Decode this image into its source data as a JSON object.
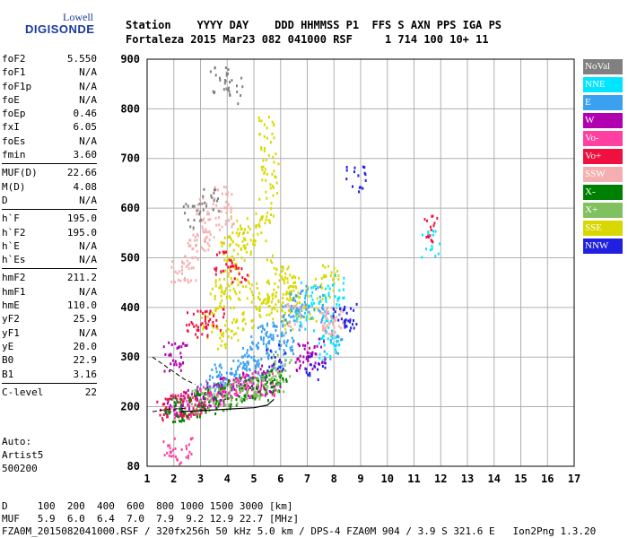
{
  "logo": {
    "line1": "Lowell",
    "line2": "DIGISONDE"
  },
  "header": {
    "labels": "Station    YYYY DAY    DDD HHMMSS P1  FFS S AXN PPS IGA PS",
    "values": "Fortaleza 2015 Mar23 082 041000 RSF     1 714 100 10+ 11"
  },
  "params": {
    "group1": [
      {
        "name": "foF2",
        "value": "5.550"
      },
      {
        "name": "foF1",
        "value": "N/A"
      },
      {
        "name": "foF1p",
        "value": "N/A"
      },
      {
        "name": "foE",
        "value": "N/A"
      },
      {
        "name": "foEp",
        "value": "0.46"
      },
      {
        "name": "fxI",
        "value": "6.05"
      },
      {
        "name": "foEs",
        "value": "N/A"
      },
      {
        "name": "fmin",
        "value": "3.60"
      }
    ],
    "group2": [
      {
        "name": "MUF(D)",
        "value": "22.66"
      },
      {
        "name": "M(D)",
        "value": "4.08"
      },
      {
        "name": "D",
        "value": "N/A"
      }
    ],
    "group3": [
      {
        "name": "h`F",
        "value": "195.0"
      },
      {
        "name": "h`F2",
        "value": "195.0"
      },
      {
        "name": "h`E",
        "value": "N/A"
      },
      {
        "name": "h`Es",
        "value": "N/A"
      }
    ],
    "group4": [
      {
        "name": "hmF2",
        "value": "211.2"
      },
      {
        "name": "hmF1",
        "value": "N/A"
      },
      {
        "name": "hmE",
        "value": "110.0"
      },
      {
        "name": "yF2",
        "value": "25.9"
      },
      {
        "name": "yF1",
        "value": "N/A"
      },
      {
        "name": "yE",
        "value": "20.0"
      },
      {
        "name": "B0",
        "value": "22.9"
      },
      {
        "name": "B1",
        "value": "3.16"
      }
    ],
    "group5": [
      {
        "name": "C-level",
        "value": "22"
      }
    ]
  },
  "auto": {
    "line1": "Auto:",
    "line2": "Artist5",
    "line3": "500200"
  },
  "legend": [
    {
      "label": "NoVal",
      "color": "#808080"
    },
    {
      "label": "NNE",
      "color": "#00e5ff"
    },
    {
      "label": "E",
      "color": "#3aa0f0"
    },
    {
      "label": "W",
      "color": "#b000b0"
    },
    {
      "label": "Vo-",
      "color": "#ff40a0"
    },
    {
      "label": "Vo+",
      "color": "#f01040"
    },
    {
      "label": "SSW",
      "color": "#f4b0b0"
    },
    {
      "label": "X-",
      "color": "#008000"
    },
    {
      "label": "X+",
      "color": "#80c060"
    },
    {
      "label": "SSE",
      "color": "#d8d800"
    },
    {
      "label": "NNW",
      "color": "#2020e0"
    }
  ],
  "footer": {
    "line1": "D     100  200  400  600  800 1000 1500 3000 [km]",
    "line2": "MUF   5.9  6.0  6.4  7.0  7.9  9.2 12.9 22.7 [MHz]",
    "line3": "FZA0M_2015082041000.RSF / 320fx256h 50 kHz 5.0 km / DPS-4 FZA0M 904 / 3.9 S 321.6 E   Ion2Png 1.3.20"
  },
  "chart_data": {
    "type": "scatter",
    "title": "",
    "xlabel": "",
    "ylabel": "",
    "xlim": [
      1,
      17
    ],
    "ylim": [
      80,
      900
    ],
    "xticks": [
      1,
      2,
      3,
      4,
      5,
      6,
      7,
      8,
      9,
      10,
      11,
      12,
      13,
      14,
      15,
      16,
      17
    ],
    "yticks": [
      80,
      200,
      300,
      400,
      500,
      600,
      700,
      800,
      900
    ],
    "grid": true,
    "series": [
      {
        "name": "SSE",
        "color": "#d8d800",
        "points": [
          [
            3.3,
            380
          ],
          [
            3.6,
            420
          ],
          [
            3.9,
            460
          ],
          [
            4.2,
            500
          ],
          [
            4.5,
            520
          ],
          [
            4.8,
            540
          ],
          [
            5.1,
            560
          ],
          [
            5.4,
            600
          ],
          [
            5.6,
            650
          ],
          [
            5.8,
            480
          ],
          [
            6.1,
            460
          ],
          [
            6.4,
            440
          ],
          [
            6.7,
            420
          ],
          [
            7.0,
            400
          ],
          [
            7.8,
            460
          ],
          [
            7.6,
            440
          ],
          [
            4.0,
            420
          ],
          [
            4.6,
            440
          ],
          [
            5.2,
            430
          ],
          [
            5.7,
            420
          ],
          [
            6.0,
            410
          ],
          [
            3.6,
            340
          ],
          [
            4.3,
            360
          ],
          [
            4.9,
            380
          ],
          [
            5.5,
            400
          ],
          [
            6.3,
            380
          ],
          [
            5.4,
            760
          ],
          [
            5.6,
            700
          ],
          [
            3.8,
            520
          ],
          [
            4.4,
            560
          ]
        ]
      },
      {
        "name": "E",
        "color": "#3aa0f0",
        "points": [
          [
            3.2,
            240
          ],
          [
            3.6,
            250
          ],
          [
            4.0,
            265
          ],
          [
            4.4,
            280
          ],
          [
            4.8,
            300
          ],
          [
            5.2,
            320
          ],
          [
            5.6,
            345
          ],
          [
            6.0,
            360
          ],
          [
            6.4,
            380
          ],
          [
            6.8,
            400
          ],
          [
            7.2,
            420
          ],
          [
            7.8,
            380
          ],
          [
            7.9,
            320
          ],
          [
            6.2,
            330
          ],
          [
            5.8,
            300
          ],
          [
            5.0,
            280
          ],
          [
            4.6,
            270
          ],
          [
            3.8,
            260
          ],
          [
            5.4,
            340
          ],
          [
            6.6,
            410
          ]
        ]
      },
      {
        "name": "NNE",
        "color": "#00e5ff",
        "points": [
          [
            7.8,
            350
          ],
          [
            7.9,
            400
          ],
          [
            8.0,
            440
          ],
          [
            7.7,
            320
          ],
          [
            11.6,
            530
          ],
          [
            6.9,
            380
          ],
          [
            7.1,
            430
          ]
        ]
      },
      {
        "name": "W",
        "color": "#b000b0",
        "points": [
          [
            2.0,
            200
          ],
          [
            2.4,
            205
          ],
          [
            2.8,
            215
          ],
          [
            3.2,
            225
          ],
          [
            3.6,
            230
          ],
          [
            4.0,
            238
          ],
          [
            4.4,
            243
          ],
          [
            4.8,
            248
          ],
          [
            5.2,
            252
          ],
          [
            5.6,
            258
          ],
          [
            7.0,
            305
          ],
          [
            7.3,
            315
          ],
          [
            6.8,
            300
          ],
          [
            2.1,
            305
          ],
          [
            1.9,
            300
          ],
          [
            3.4,
            220
          ]
        ]
      },
      {
        "name": "Vo-",
        "color": "#ff40a0",
        "points": [
          [
            2.2,
            205
          ],
          [
            2.6,
            210
          ],
          [
            3.0,
            215
          ],
          [
            3.5,
            225
          ],
          [
            4.1,
            235
          ],
          [
            4.6,
            245
          ],
          [
            5.0,
            248
          ],
          [
            5.4,
            250
          ],
          [
            1.9,
            112
          ],
          [
            2.3,
            115
          ]
        ]
      },
      {
        "name": "Vo+",
        "color": "#f01040",
        "points": [
          [
            1.7,
            200
          ],
          [
            2.0,
            205
          ],
          [
            2.5,
            208
          ],
          [
            2.9,
            212
          ],
          [
            3.1,
            370
          ],
          [
            3.5,
            372
          ],
          [
            2.8,
            368
          ],
          [
            4.4,
            480
          ],
          [
            3.8,
            490
          ],
          [
            11.6,
            560
          ]
        ]
      },
      {
        "name": "SSW",
        "color": "#f4b0b0",
        "points": [
          [
            7.7,
            375
          ],
          [
            7.9,
            380
          ],
          [
            8.0,
            370
          ],
          [
            6.5,
            390
          ],
          [
            3.0,
            540
          ],
          [
            3.4,
            560
          ],
          [
            2.8,
            520
          ],
          [
            4.0,
            590
          ],
          [
            2.2,
            475
          ],
          [
            2.5,
            480
          ],
          [
            3.2,
            600
          ],
          [
            3.8,
            620
          ]
        ]
      },
      {
        "name": "X-",
        "color": "#008000",
        "points": [
          [
            2.3,
            200
          ],
          [
            2.8,
            208
          ],
          [
            3.3,
            215
          ],
          [
            3.8,
            222
          ],
          [
            4.3,
            230
          ],
          [
            4.8,
            236
          ],
          [
            5.2,
            242
          ],
          [
            5.6,
            250
          ],
          [
            5.9,
            262
          ],
          [
            2.0,
            198
          ]
        ]
      },
      {
        "name": "X+",
        "color": "#80c060",
        "points": [
          [
            3.0,
            212
          ],
          [
            3.6,
            220
          ],
          [
            4.2,
            228
          ],
          [
            4.8,
            235
          ],
          [
            5.4,
            242
          ],
          [
            5.8,
            255
          ],
          [
            6.0,
            280
          ]
        ]
      },
      {
        "name": "NNW",
        "color": "#2020e0",
        "points": [
          [
            8.8,
            660
          ],
          [
            8.3,
            380
          ],
          [
            8.5,
            385
          ],
          [
            7.3,
            280
          ],
          [
            5.8,
            300
          ]
        ]
      },
      {
        "name": "NoVal",
        "color": "#808080",
        "points": [
          [
            3.7,
            860
          ],
          [
            4.2,
            840
          ],
          [
            2.7,
            590
          ],
          [
            3.3,
            620
          ]
        ]
      }
    ]
  }
}
